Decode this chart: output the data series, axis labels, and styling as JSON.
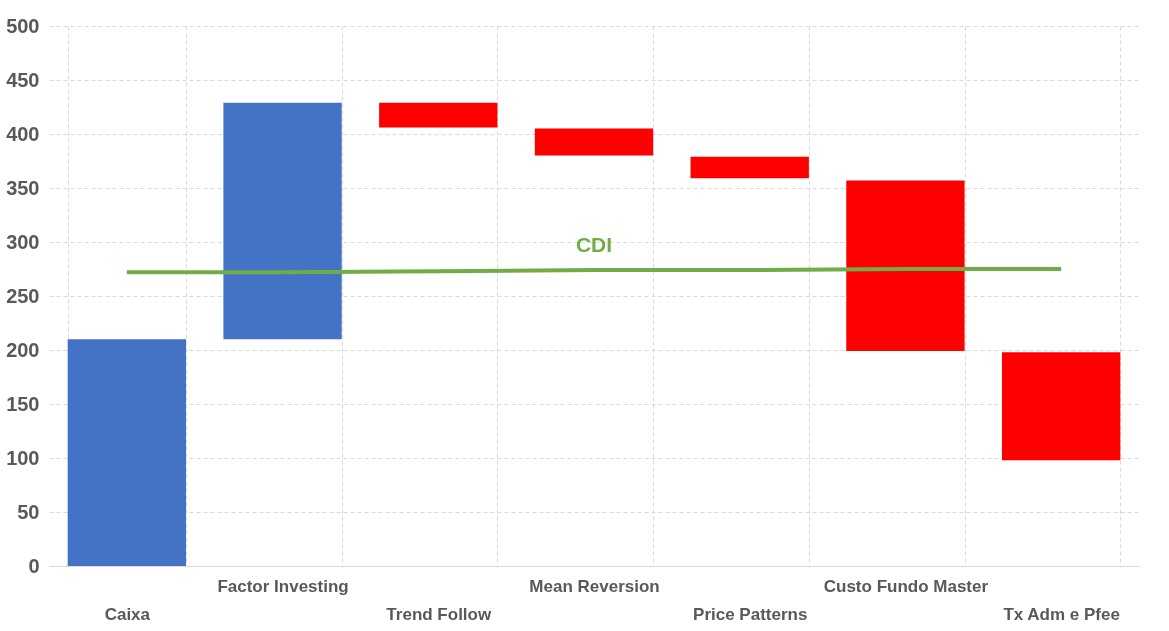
{
  "chart_data": {
    "type": "bar",
    "categories": [
      "Caixa",
      "Factor Investing",
      "Trend Follow",
      "Mean Reversion",
      "Price Patterns",
      "Custo Fundo Master",
      "Tx Adm e Pfee"
    ],
    "ylim": [
      0,
      500
    ],
    "yticks": [
      0,
      50,
      100,
      150,
      200,
      250,
      300,
      350,
      400,
      450,
      500
    ],
    "grid": true,
    "series": [
      {
        "base": [
          0,
          210,
          429,
          405,
          379,
          357,
          198
        ],
        "colors": [
          "#4472c4",
          "#4472c4",
          "#ff0000",
          "#ff0000",
          "#ff0000",
          "#ff0000",
          "#ff0000"
        ],
        "values": [
          210,
          219,
          -23,
          -25,
          -20,
          -158,
          -100
        ]
      },
      {
        "type": "line",
        "name": "CDI",
        "color": "#70ad47",
        "values": [
          272,
          272,
          273,
          274,
          274,
          275,
          275
        ]
      }
    ]
  }
}
